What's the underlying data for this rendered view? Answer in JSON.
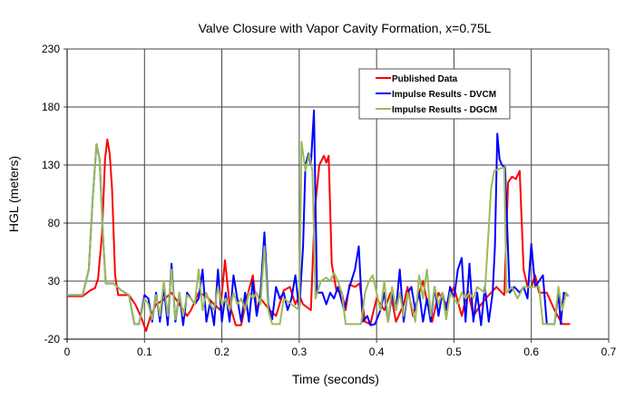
{
  "chart_data": {
    "type": "line",
    "title": "Valve Closure with Vapor Cavity Formation, x=0.75L",
    "xlabel": "Time (seconds)",
    "ylabel": "HGL (meters)",
    "xlim": [
      0,
      0.7
    ],
    "ylim": [
      -20,
      230
    ],
    "xticks": [
      "0",
      "0.1",
      "0.2",
      "0.3",
      "0.4",
      "0.5",
      "0.6",
      "0.7"
    ],
    "yticks": [
      "-20",
      "30",
      "80",
      "130",
      "180",
      "230"
    ],
    "grid": true,
    "legend_position": "top-right",
    "series": [
      {
        "name": "Published Data",
        "color": "#ff0000",
        "points": [
          [
            0,
            17
          ],
          [
            0.02,
            17
          ],
          [
            0.03,
            22
          ],
          [
            0.036,
            24
          ],
          [
            0.04,
            32
          ],
          [
            0.045,
            70
          ],
          [
            0.049,
            135
          ],
          [
            0.052,
            152
          ],
          [
            0.055,
            140
          ],
          [
            0.058,
            110
          ],
          [
            0.062,
            35
          ],
          [
            0.066,
            18
          ],
          [
            0.08,
            18
          ],
          [
            0.088,
            10
          ],
          [
            0.095,
            0
          ],
          [
            0.102,
            -13
          ],
          [
            0.108,
            0
          ],
          [
            0.115,
            10
          ],
          [
            0.125,
            14
          ],
          [
            0.135,
            20
          ],
          [
            0.145,
            10
          ],
          [
            0.155,
            0
          ],
          [
            0.16,
            5
          ],
          [
            0.17,
            20
          ],
          [
            0.18,
            17
          ],
          [
            0.19,
            10
          ],
          [
            0.198,
            5
          ],
          [
            0.204,
            48
          ],
          [
            0.21,
            10
          ],
          [
            0.218,
            -8
          ],
          [
            0.225,
            -8
          ],
          [
            0.232,
            15
          ],
          [
            0.24,
            35
          ],
          [
            0.245,
            5
          ],
          [
            0.25,
            15
          ],
          [
            0.262,
            5
          ],
          [
            0.27,
            0
          ],
          [
            0.28,
            22
          ],
          [
            0.288,
            25
          ],
          [
            0.295,
            10
          ],
          [
            0.3,
            18
          ],
          [
            0.305,
            10
          ],
          [
            0.315,
            5
          ],
          [
            0.32,
            90
          ],
          [
            0.326,
            130
          ],
          [
            0.332,
            138
          ],
          [
            0.335,
            132
          ],
          [
            0.338,
            138
          ],
          [
            0.342,
            45
          ],
          [
            0.348,
            22
          ],
          [
            0.355,
            20
          ],
          [
            0.36,
            5
          ],
          [
            0.365,
            27
          ],
          [
            0.372,
            25
          ],
          [
            0.378,
            28
          ],
          [
            0.385,
            -5
          ],
          [
            0.392,
            -7
          ],
          [
            0.4,
            15
          ],
          [
            0.41,
            5
          ],
          [
            0.418,
            20
          ],
          [
            0.425,
            -5
          ],
          [
            0.435,
            10
          ],
          [
            0.44,
            25
          ],
          [
            0.447,
            0
          ],
          [
            0.455,
            20
          ],
          [
            0.46,
            30
          ],
          [
            0.466,
            10
          ],
          [
            0.472,
            -5
          ],
          [
            0.48,
            20
          ],
          [
            0.49,
            10
          ],
          [
            0.5,
            25
          ],
          [
            0.51,
            0
          ],
          [
            0.518,
            22
          ],
          [
            0.525,
            0
          ],
          [
            0.535,
            10
          ],
          [
            0.545,
            18
          ],
          [
            0.555,
            25
          ],
          [
            0.565,
            18
          ],
          [
            0.57,
            115
          ],
          [
            0.575,
            120
          ],
          [
            0.58,
            118
          ],
          [
            0.585,
            125
          ],
          [
            0.59,
            40
          ],
          [
            0.595,
            25
          ],
          [
            0.6,
            25
          ],
          [
            0.605,
            35
          ],
          [
            0.61,
            20
          ],
          [
            0.62,
            20
          ],
          [
            0.63,
            5
          ],
          [
            0.64,
            -7
          ],
          [
            0.65,
            -7
          ]
        ]
      },
      {
        "name": "Impulse Results - DVCM",
        "color": "#0000ff",
        "points": [
          [
            0,
            18
          ],
          [
            0.02,
            18
          ],
          [
            0.028,
            40
          ],
          [
            0.033,
            100
          ],
          [
            0.038,
            148
          ],
          [
            0.042,
            135
          ],
          [
            0.047,
            60
          ],
          [
            0.05,
            28
          ],
          [
            0.06,
            28
          ],
          [
            0.07,
            22
          ],
          [
            0.08,
            18
          ],
          [
            0.087,
            -7
          ],
          [
            0.093,
            -7
          ],
          [
            0.1,
            18
          ],
          [
            0.105,
            15
          ],
          [
            0.11,
            -5
          ],
          [
            0.115,
            20
          ],
          [
            0.12,
            -5
          ],
          [
            0.125,
            25
          ],
          [
            0.13,
            -8
          ],
          [
            0.135,
            45
          ],
          [
            0.14,
            -5
          ],
          [
            0.145,
            20
          ],
          [
            0.15,
            -8
          ],
          [
            0.155,
            20
          ],
          [
            0.16,
            15
          ],
          [
            0.165,
            10
          ],
          [
            0.17,
            15
          ],
          [
            0.175,
            40
          ],
          [
            0.18,
            -5
          ],
          [
            0.185,
            12
          ],
          [
            0.19,
            -8
          ],
          [
            0.195,
            40
          ],
          [
            0.2,
            -5
          ],
          [
            0.205,
            20
          ],
          [
            0.21,
            -5
          ],
          [
            0.215,
            35
          ],
          [
            0.22,
            15
          ],
          [
            0.225,
            -5
          ],
          [
            0.23,
            20
          ],
          [
            0.235,
            -5
          ],
          [
            0.24,
            30
          ],
          [
            0.245,
            0
          ],
          [
            0.25,
            20
          ],
          [
            0.255,
            72
          ],
          [
            0.26,
            10
          ],
          [
            0.265,
            -3
          ],
          [
            0.27,
            25
          ],
          [
            0.275,
            15
          ],
          [
            0.28,
            20
          ],
          [
            0.285,
            5
          ],
          [
            0.29,
            15
          ],
          [
            0.295,
            35
          ],
          [
            0.3,
            5
          ],
          [
            0.305,
            60
          ],
          [
            0.308,
            130
          ],
          [
            0.312,
            140
          ],
          [
            0.315,
            130
          ],
          [
            0.319,
            177
          ],
          [
            0.323,
            20
          ],
          [
            0.33,
            20
          ],
          [
            0.335,
            10
          ],
          [
            0.34,
            20
          ],
          [
            0.345,
            15
          ],
          [
            0.35,
            25
          ],
          [
            0.358,
            5
          ],
          [
            0.365,
            25
          ],
          [
            0.372,
            40
          ],
          [
            0.377,
            60
          ],
          [
            0.382,
            -5
          ],
          [
            0.388,
            0
          ],
          [
            0.392,
            -8
          ],
          [
            0.398,
            -7
          ],
          [
            0.405,
            5
          ],
          [
            0.41,
            20
          ],
          [
            0.415,
            -5
          ],
          [
            0.42,
            20
          ],
          [
            0.425,
            5
          ],
          [
            0.43,
            40
          ],
          [
            0.435,
            -5
          ],
          [
            0.44,
            20
          ],
          [
            0.445,
            25
          ],
          [
            0.45,
            5
          ],
          [
            0.455,
            20
          ],
          [
            0.46,
            -5
          ],
          [
            0.465,
            15
          ],
          [
            0.47,
            -5
          ],
          [
            0.475,
            25
          ],
          [
            0.48,
            0
          ],
          [
            0.485,
            20
          ],
          [
            0.49,
            5
          ],
          [
            0.495,
            25
          ],
          [
            0.5,
            15
          ],
          [
            0.505,
            40
          ],
          [
            0.51,
            50
          ],
          [
            0.515,
            -5
          ],
          [
            0.52,
            45
          ],
          [
            0.525,
            -5
          ],
          [
            0.53,
            20
          ],
          [
            0.535,
            -8
          ],
          [
            0.54,
            25
          ],
          [
            0.545,
            -5
          ],
          [
            0.55,
            20
          ],
          [
            0.553,
            60
          ],
          [
            0.556,
            157
          ],
          [
            0.559,
            135
          ],
          [
            0.562,
            130
          ],
          [
            0.566,
            128
          ],
          [
            0.572,
            20
          ],
          [
            0.578,
            25
          ],
          [
            0.585,
            20
          ],
          [
            0.59,
            25
          ],
          [
            0.595,
            15
          ],
          [
            0.6,
            62
          ],
          [
            0.605,
            25
          ],
          [
            0.61,
            30
          ],
          [
            0.615,
            35
          ],
          [
            0.62,
            -7
          ],
          [
            0.63,
            -7
          ],
          [
            0.635,
            20
          ],
          [
            0.638,
            -7
          ],
          [
            0.642,
            20
          ],
          [
            0.648,
            17
          ]
        ]
      },
      {
        "name": "Impulse Results - DGCM",
        "color": "#9bbb59",
        "points": [
          [
            0,
            18
          ],
          [
            0.02,
            18
          ],
          [
            0.028,
            40
          ],
          [
            0.033,
            100
          ],
          [
            0.038,
            148
          ],
          [
            0.042,
            135
          ],
          [
            0.047,
            60
          ],
          [
            0.05,
            28
          ],
          [
            0.06,
            28
          ],
          [
            0.07,
            22
          ],
          [
            0.08,
            18
          ],
          [
            0.087,
            -7
          ],
          [
            0.093,
            -7
          ],
          [
            0.1,
            15
          ],
          [
            0.105,
            10
          ],
          [
            0.11,
            -3
          ],
          [
            0.115,
            18
          ],
          [
            0.12,
            0
          ],
          [
            0.125,
            30
          ],
          [
            0.13,
            0
          ],
          [
            0.135,
            40
          ],
          [
            0.14,
            -3
          ],
          [
            0.145,
            20
          ],
          [
            0.15,
            0
          ],
          [
            0.155,
            18
          ],
          [
            0.16,
            15
          ],
          [
            0.165,
            10
          ],
          [
            0.17,
            40
          ],
          [
            0.175,
            5
          ],
          [
            0.18,
            20
          ],
          [
            0.185,
            10
          ],
          [
            0.19,
            5
          ],
          [
            0.195,
            25
          ],
          [
            0.2,
            10
          ],
          [
            0.205,
            15
          ],
          [
            0.21,
            5
          ],
          [
            0.215,
            20
          ],
          [
            0.22,
            10
          ],
          [
            0.225,
            15
          ],
          [
            0.23,
            5
          ],
          [
            0.235,
            20
          ],
          [
            0.24,
            15
          ],
          [
            0.245,
            20
          ],
          [
            0.25,
            10
          ],
          [
            0.255,
            60
          ],
          [
            0.26,
            5
          ],
          [
            0.265,
            -7
          ],
          [
            0.275,
            -7
          ],
          [
            0.28,
            15
          ],
          [
            0.29,
            10
          ],
          [
            0.3,
            5
          ],
          [
            0.303,
            150
          ],
          [
            0.308,
            125
          ],
          [
            0.313,
            140
          ],
          [
            0.317,
            125
          ],
          [
            0.321,
            15
          ],
          [
            0.328,
            30
          ],
          [
            0.335,
            33
          ],
          [
            0.34,
            30
          ],
          [
            0.345,
            37
          ],
          [
            0.35,
            30
          ],
          [
            0.355,
            20
          ],
          [
            0.36,
            -7
          ],
          [
            0.38,
            -7
          ],
          [
            0.385,
            20
          ],
          [
            0.39,
            30
          ],
          [
            0.395,
            35
          ],
          [
            0.4,
            20
          ],
          [
            0.405,
            5
          ],
          [
            0.41,
            30
          ],
          [
            0.415,
            -5
          ],
          [
            0.42,
            25
          ],
          [
            0.425,
            5
          ],
          [
            0.43,
            20
          ],
          [
            0.435,
            0
          ],
          [
            0.44,
            20
          ],
          [
            0.445,
            10
          ],
          [
            0.45,
            -5
          ],
          [
            0.455,
            35
          ],
          [
            0.46,
            15
          ],
          [
            0.465,
            40
          ],
          [
            0.47,
            0
          ],
          [
            0.475,
            25
          ],
          [
            0.48,
            10
          ],
          [
            0.485,
            20
          ],
          [
            0.49,
            -3
          ],
          [
            0.495,
            20
          ],
          [
            0.5,
            15
          ],
          [
            0.505,
            10
          ],
          [
            0.51,
            20
          ],
          [
            0.515,
            15
          ],
          [
            0.52,
            20
          ],
          [
            0.525,
            15
          ],
          [
            0.53,
            25
          ],
          [
            0.54,
            20
          ],
          [
            0.548,
            110
          ],
          [
            0.552,
            125
          ],
          [
            0.56,
            127
          ],
          [
            0.565,
            128
          ],
          [
            0.568,
            20
          ],
          [
            0.575,
            25
          ],
          [
            0.582,
            15
          ],
          [
            0.59,
            25
          ],
          [
            0.6,
            25
          ],
          [
            0.61,
            25
          ],
          [
            0.615,
            -7
          ],
          [
            0.63,
            -7
          ],
          [
            0.635,
            25
          ],
          [
            0.64,
            5
          ],
          [
            0.645,
            20
          ],
          [
            0.648,
            17
          ]
        ]
      }
    ]
  }
}
